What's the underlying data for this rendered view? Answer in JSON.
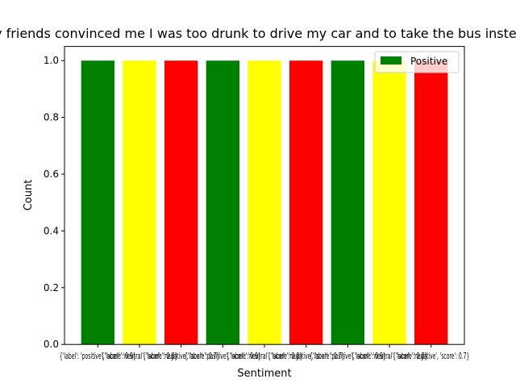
{
  "chart_data": {
    "type": "bar",
    "title": "My friends convinced me I was too drunk to drive my car and to take the bus instead",
    "xlabel": "Sentiment",
    "ylabel": "Count",
    "ylim": [
      0,
      1.05
    ],
    "yticks": [
      "0.0",
      "0.2",
      "0.4",
      "0.6",
      "0.8",
      "1.0"
    ],
    "categories": [
      "{'label': 'positive', 'score': 0.9}",
      "{'label': 'neutral', 'score': 0.8}",
      "{'label': 'negative', 'score': 0.7}",
      "{'label': 'positive', 'score': 0.9}",
      "{'label': 'neutral', 'score': 0.8}",
      "{'label': 'negative', 'score': 0.7}",
      "{'label': 'positive', 'score': 0.9}",
      "{'label': 'neutral', 'score': 0.8}",
      "{'label': 'negative', 'score': 0.7}"
    ],
    "values": [
      1,
      1,
      1,
      1,
      1,
      1,
      1,
      1,
      1
    ],
    "colors": [
      "#008000",
      "#ffff00",
      "#ff0000",
      "#008000",
      "#ffff00",
      "#ff0000",
      "#008000",
      "#ffff00",
      "#ff0000"
    ],
    "legend": {
      "placement": "upper-right",
      "entries": [
        {
          "label": "Positive",
          "color": "#008000"
        }
      ]
    },
    "grid": false
  }
}
